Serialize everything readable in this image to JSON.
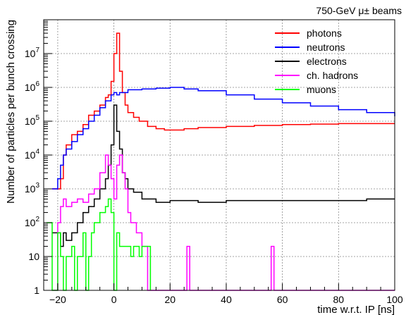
{
  "chart_data": {
    "type": "line",
    "title": "750-GeV μ± beams",
    "xlabel": "time w.r.t. IP [ns]",
    "ylabel": "Number of particles per bunch crossing",
    "xlim": [
      -25,
      100
    ],
    "ylim": [
      1,
      100000000
    ],
    "y_scale": "log",
    "grid": true,
    "legend_position": "top-right",
    "x_ticks": [
      -20,
      0,
      20,
      40,
      60,
      80,
      100
    ],
    "x_tick_labels": [
      "−20",
      "0",
      "20",
      "40",
      "60",
      "80",
      "100"
    ],
    "y_ticks": [
      1,
      10,
      100,
      1000,
      10000,
      100000,
      1000000,
      10000000
    ],
    "y_tick_labels": [
      {
        "base": "1",
        "exp": ""
      },
      {
        "base": "10",
        "exp": ""
      },
      {
        "base": "10",
        "exp": "2"
      },
      {
        "base": "10",
        "exp": "3"
      },
      {
        "base": "10",
        "exp": "4"
      },
      {
        "base": "10",
        "exp": "5"
      },
      {
        "base": "10",
        "exp": "6"
      },
      {
        "base": "10",
        "exp": "7"
      }
    ],
    "series": [
      {
        "name": "photons",
        "color": "#ff0000",
        "points": [
          [
            -22,
            1000
          ],
          [
            -20,
            1000
          ],
          [
            -19,
            2000
          ],
          [
            -18,
            10000
          ],
          [
            -17,
            20000
          ],
          [
            -15,
            40000
          ],
          [
            -13,
            50000
          ],
          [
            -11,
            80000
          ],
          [
            -9,
            150000
          ],
          [
            -7,
            200000
          ],
          [
            -5,
            300000
          ],
          [
            -3,
            500000
          ],
          [
            -2,
            600000
          ],
          [
            -1,
            1500000
          ],
          [
            0,
            10000000
          ],
          [
            1,
            40000000
          ],
          [
            2,
            3000000
          ],
          [
            3,
            700000
          ],
          [
            4,
            300000
          ],
          [
            5,
            180000
          ],
          [
            7,
            130000
          ],
          [
            9,
            100000
          ],
          [
            12,
            70000
          ],
          [
            15,
            60000
          ],
          [
            18,
            55000
          ],
          [
            20,
            55000
          ],
          [
            25,
            60000
          ],
          [
            30,
            65000
          ],
          [
            40,
            70000
          ],
          [
            50,
            75000
          ],
          [
            60,
            80000
          ],
          [
            70,
            82000
          ],
          [
            80,
            85000
          ],
          [
            90,
            85000
          ],
          [
            100,
            85000
          ]
        ]
      },
      {
        "name": "neutrons",
        "color": "#0000ff",
        "points": [
          [
            -22,
            1000
          ],
          [
            -20,
            2000
          ],
          [
            -19,
            5000
          ],
          [
            -18,
            10000
          ],
          [
            -17,
            15000
          ],
          [
            -15,
            25000
          ],
          [
            -13,
            40000
          ],
          [
            -11,
            60000
          ],
          [
            -9,
            100000
          ],
          [
            -7,
            150000
          ],
          [
            -5,
            250000
          ],
          [
            -3,
            400000
          ],
          [
            -1,
            600000
          ],
          [
            0,
            700000
          ],
          [
            1,
            600000
          ],
          [
            2,
            700000
          ],
          [
            5,
            850000
          ],
          [
            10,
            900000
          ],
          [
            15,
            950000
          ],
          [
            20,
            1000000
          ],
          [
            25,
            900000
          ],
          [
            30,
            800000
          ],
          [
            40,
            600000
          ],
          [
            50,
            450000
          ],
          [
            60,
            350000
          ],
          [
            70,
            280000
          ],
          [
            80,
            220000
          ],
          [
            90,
            180000
          ],
          [
            100,
            140000
          ]
        ]
      },
      {
        "name": "electrons",
        "color": "#000000",
        "points": [
          [
            -22,
            50
          ],
          [
            -20,
            50
          ],
          [
            -19,
            20
          ],
          [
            -18,
            50
          ],
          [
            -17,
            30
          ],
          [
            -15,
            50
          ],
          [
            -13,
            100
          ],
          [
            -11,
            200
          ],
          [
            -9,
            300
          ],
          [
            -7,
            500
          ],
          [
            -5,
            1000
          ],
          [
            -3,
            2000
          ],
          [
            -2,
            5000
          ],
          [
            -1,
            20000
          ],
          [
            0,
            300000
          ],
          [
            1,
            50000
          ],
          [
            2,
            15000
          ],
          [
            3,
            3000
          ],
          [
            4,
            2000
          ],
          [
            5,
            1000
          ],
          [
            7,
            800
          ],
          [
            10,
            500
          ],
          [
            15,
            400
          ],
          [
            20,
            450
          ],
          [
            30,
            400
          ],
          [
            40,
            450
          ],
          [
            50,
            450
          ],
          [
            60,
            450
          ],
          [
            70,
            450
          ],
          [
            80,
            450
          ],
          [
            90,
            500
          ],
          [
            100,
            500
          ]
        ]
      },
      {
        "name": "ch. hadrons",
        "color": "#ff00ff",
        "points": [
          [
            -22,
            1
          ],
          [
            -20,
            100
          ],
          [
            -19,
            300
          ],
          [
            -18,
            500
          ],
          [
            -17,
            300
          ],
          [
            -15,
            400
          ],
          [
            -13,
            500
          ],
          [
            -11,
            400
          ],
          [
            -9,
            700
          ],
          [
            -7,
            1000
          ],
          [
            -5,
            3000
          ],
          [
            -3,
            10000
          ],
          [
            -2,
            5000
          ],
          [
            -1,
            2000
          ],
          [
            0,
            500
          ],
          [
            1,
            5000
          ],
          [
            2,
            10000
          ],
          [
            3,
            3000
          ],
          [
            4,
            1000
          ],
          [
            5,
            200
          ],
          [
            6,
            100
          ],
          [
            8,
            50
          ],
          [
            10,
            20
          ],
          [
            12,
            1
          ],
          [
            26,
            20
          ],
          [
            27,
            1
          ],
          [
            56,
            20
          ],
          [
            57,
            1
          ],
          [
            100,
            1
          ]
        ]
      },
      {
        "name": "muons",
        "color": "#00ff00",
        "points": [
          [
            -24,
            100
          ],
          [
            -22,
            1
          ],
          [
            -20,
            50
          ],
          [
            -19,
            10
          ],
          [
            -18,
            1
          ],
          [
            -17,
            10
          ],
          [
            -15,
            20
          ],
          [
            -14,
            1
          ],
          [
            -13,
            10
          ],
          [
            -11,
            50
          ],
          [
            -10,
            1
          ],
          [
            -9,
            10
          ],
          [
            -8,
            50
          ],
          [
            -7,
            100
          ],
          [
            -5,
            200
          ],
          [
            -3,
            300
          ],
          [
            -2,
            500
          ],
          [
            -1,
            200
          ],
          [
            0,
            1
          ],
          [
            1,
            50
          ],
          [
            2,
            20
          ],
          [
            4,
            20
          ],
          [
            6,
            10
          ],
          [
            7,
            20
          ],
          [
            9,
            10
          ],
          [
            10,
            20
          ],
          [
            12,
            20
          ],
          [
            13,
            1
          ]
        ]
      }
    ]
  }
}
